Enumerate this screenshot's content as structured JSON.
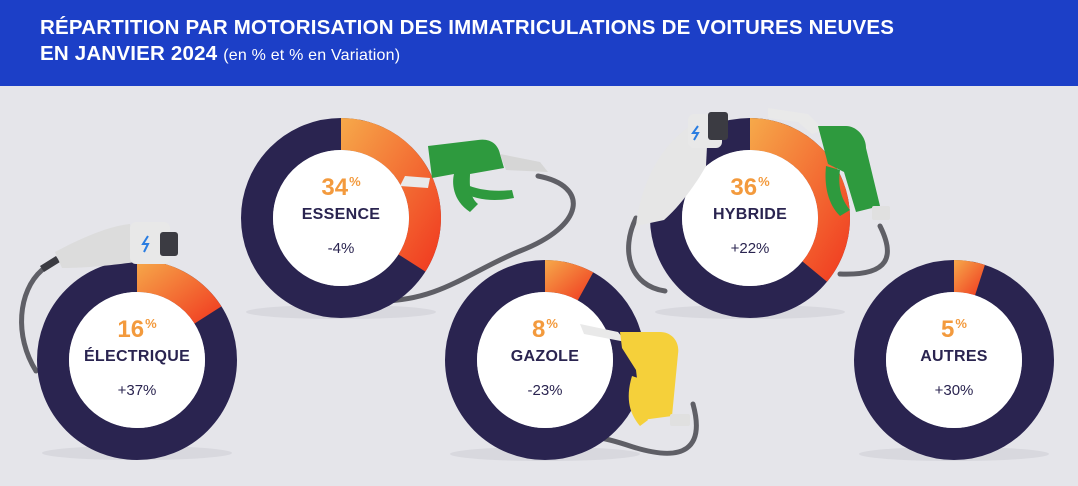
{
  "header": {
    "title_line1": "RÉPARTITION PAR MOTORISATION DES IMMATRICULATIONS DE VOITURES NEUVES",
    "title_line2": "EN JANVIER 2024",
    "subtitle": "(en % et % en Variation)"
  },
  "colors": {
    "header_bg": "#1c3fc7",
    "background": "#e5e5ea",
    "ring_base": "#2a2450",
    "segment_start": "#f6a94a",
    "segment_end": "#f0371f",
    "percent_text": "#f39a3d",
    "label_text": "#2a2450",
    "nozzle_green": "#2e9a3e",
    "nozzle_yellow": "#f5d03a",
    "plug_gray": "#dcdcdc",
    "cable": "#5f5f66"
  },
  "chart_data": {
    "type": "pie",
    "variant": "donut",
    "categories": [
      "ÉLECTRIQUE",
      "ESSENCE",
      "GAZOLE",
      "HYBRIDE",
      "AUTRES"
    ],
    "values": [
      16,
      34,
      8,
      36,
      5
    ],
    "value_unit": "%",
    "variation_labels": [
      "+37%",
      "-4%",
      "-23%",
      "+22%",
      "+30%"
    ],
    "icons": [
      "ev-plug-icon",
      "fuel-nozzle-green-icon",
      "fuel-nozzle-yellow-icon",
      "hybrid-plug-and-nozzle-icon",
      null
    ]
  },
  "donuts": [
    {
      "pct": "16",
      "sup": "%",
      "name": "ÉLECTRIQUE",
      "variation": "+37%"
    },
    {
      "pct": "34",
      "sup": "%",
      "name": "ESSENCE",
      "variation": "-4%"
    },
    {
      "pct": "8",
      "sup": "%",
      "name": "GAZOLE",
      "variation": "-23%"
    },
    {
      "pct": "36",
      "sup": "%",
      "name": "HYBRIDE",
      "variation": "+22%"
    },
    {
      "pct": "5",
      "sup": "%",
      "name": "AUTRES",
      "variation": "+30%"
    }
  ]
}
